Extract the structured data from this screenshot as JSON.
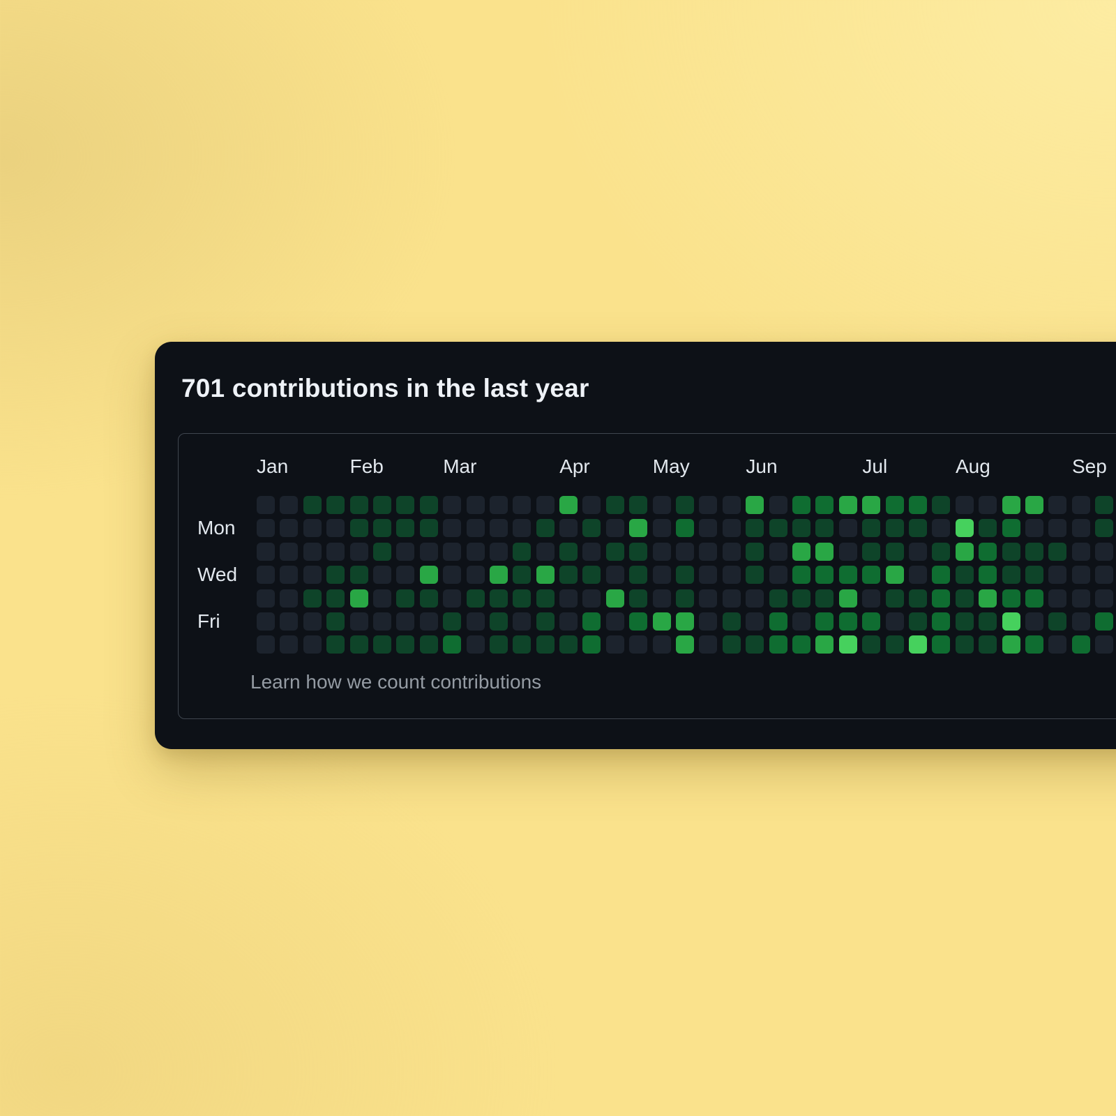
{
  "card": {
    "title": "701 contributions in the last year",
    "footer_link": "Learn how we count contributions"
  },
  "colors": {
    "page_background": "#fae28c",
    "card_background": "#0d1117",
    "box_border": "#3f464f",
    "title_text": "#eef2f7",
    "label_text": "#e2e8ee",
    "footer_text": "#949ba3"
  },
  "chart_data": {
    "type": "heatmap",
    "title": "701 contributions in the last year",
    "total_contributions": 701,
    "period": "last year",
    "legend_position": "none",
    "grid": "7 rows (Sun-Sat) x 37 visible week columns, Jan through Sep (right edge cropped)",
    "level_colors": {
      "0": "#1c232d",
      "1": "#0e4429",
      "2": "#0f6d31",
      "3": "#29a745",
      "4": "#46d15d"
    },
    "month_labels": [
      {
        "label": "Jan",
        "week": 0
      },
      {
        "label": "Feb",
        "week": 4
      },
      {
        "label": "Mar",
        "week": 8
      },
      {
        "label": "Apr",
        "week": 13
      },
      {
        "label": "May",
        "week": 17
      },
      {
        "label": "Jun",
        "week": 21
      },
      {
        "label": "Jul",
        "week": 26
      },
      {
        "label": "Aug",
        "week": 30
      },
      {
        "label": "Sep",
        "week": 35
      }
    ],
    "day_labels": [
      {
        "label": "Mon",
        "row": 1
      },
      {
        "label": "Wed",
        "row": 3
      },
      {
        "label": "Fri",
        "row": 5
      }
    ],
    "weeks": [
      [
        0,
        0,
        0,
        0,
        0,
        0,
        0
      ],
      [
        0,
        0,
        0,
        0,
        0,
        0,
        0
      ],
      [
        1,
        0,
        0,
        0,
        1,
        0,
        0
      ],
      [
        1,
        0,
        0,
        1,
        1,
        1,
        1
      ],
      [
        1,
        1,
        0,
        1,
        3,
        0,
        1
      ],
      [
        1,
        1,
        1,
        0,
        0,
        0,
        1
      ],
      [
        1,
        1,
        0,
        0,
        1,
        0,
        1
      ],
      [
        1,
        1,
        0,
        3,
        1,
        0,
        1
      ],
      [
        0,
        0,
        0,
        0,
        0,
        1,
        2
      ],
      [
        0,
        0,
        0,
        0,
        1,
        0,
        0
      ],
      [
        0,
        0,
        0,
        3,
        1,
        1,
        1
      ],
      [
        0,
        0,
        1,
        1,
        1,
        0,
        1
      ],
      [
        0,
        1,
        0,
        3,
        1,
        1,
        1
      ],
      [
        3,
        0,
        1,
        1,
        0,
        0,
        1
      ],
      [
        0,
        1,
        0,
        1,
        0,
        2,
        2
      ],
      [
        1,
        0,
        1,
        0,
        3,
        0,
        0
      ],
      [
        1,
        3,
        1,
        1,
        1,
        2,
        0
      ],
      [
        0,
        0,
        0,
        0,
        0,
        3,
        0
      ],
      [
        1,
        2,
        0,
        1,
        1,
        3,
        3
      ],
      [
        0,
        0,
        0,
        0,
        0,
        0,
        0
      ],
      [
        0,
        0,
        0,
        0,
        0,
        1,
        1
      ],
      [
        3,
        1,
        1,
        1,
        0,
        0,
        1
      ],
      [
        0,
        1,
        0,
        0,
        1,
        2,
        2
      ],
      [
        2,
        1,
        3,
        2,
        1,
        0,
        2
      ],
      [
        2,
        1,
        3,
        2,
        1,
        2,
        3
      ],
      [
        3,
        0,
        0,
        2,
        3,
        2,
        4
      ],
      [
        3,
        1,
        1,
        2,
        0,
        2,
        1
      ],
      [
        2,
        1,
        1,
        3,
        1,
        0,
        1
      ],
      [
        2,
        1,
        0,
        0,
        1,
        1,
        4
      ],
      [
        1,
        0,
        1,
        2,
        2,
        2,
        2
      ],
      [
        0,
        4,
        3,
        1,
        1,
        1,
        1
      ],
      [
        0,
        1,
        2,
        2,
        3,
        1,
        1
      ],
      [
        3,
        2,
        1,
        1,
        2,
        4,
        3
      ],
      [
        3,
        0,
        1,
        1,
        2,
        0,
        2
      ],
      [
        0,
        0,
        1,
        0,
        0,
        1,
        0
      ],
      [
        0,
        0,
        0,
        0,
        0,
        0,
        2
      ],
      [
        1,
        1,
        0,
        0,
        0,
        2,
        0
      ]
    ]
  }
}
